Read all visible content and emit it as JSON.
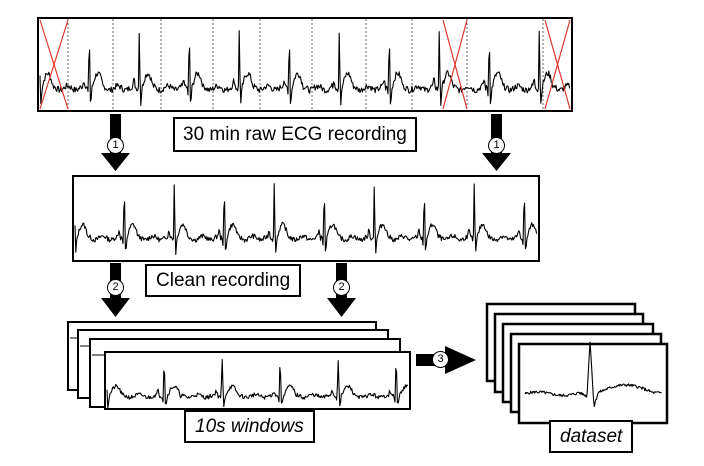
{
  "labels": {
    "raw": "30 min raw ECG recording",
    "clean": "Clean recording",
    "windows": "10s windows",
    "dataset": "dataset"
  },
  "steps": [
    "1",
    "2",
    "3"
  ],
  "colors": {
    "stroke": "#000000",
    "reject": "#e0362b",
    "marker": "#666666",
    "background": "#ffffff"
  }
}
